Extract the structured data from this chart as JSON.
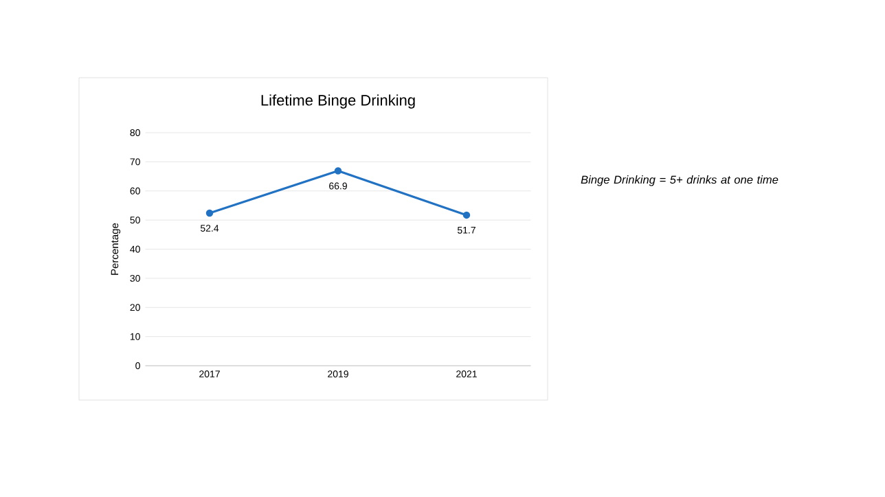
{
  "chart_data": {
    "type": "line",
    "title": "Lifetime Binge Drinking",
    "ylabel": "Percentage",
    "categories": [
      "2017",
      "2019",
      "2021"
    ],
    "series": [
      {
        "color": "#2272c3",
        "values": [
          52.4,
          66.9,
          51.7
        ],
        "value_labels": [
          "52.4",
          "66.9",
          "51.7"
        ]
      }
    ],
    "ylim": [
      0,
      80
    ],
    "yticks": [
      0,
      10,
      20,
      30,
      40,
      50,
      60,
      70,
      80
    ],
    "grid": "y",
    "marker": "circle",
    "line_style": "solid",
    "annotations": [
      "Binge Drinking = 5+ drinks at one time"
    ]
  }
}
